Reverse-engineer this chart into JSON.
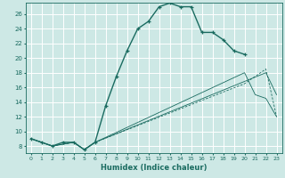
{
  "bg_color": "#cde8e5",
  "grid_color": "#ffffff",
  "line_color": "#1a6b60",
  "xlabel": "Humidex (Indice chaleur)",
  "ylabel_ticks": [
    8,
    10,
    12,
    14,
    16,
    18,
    20,
    22,
    24,
    26
  ],
  "xlim": [
    -0.5,
    23.5
  ],
  "ylim": [
    7.0,
    27.5
  ],
  "curve1_x": [
    0,
    1,
    2,
    3,
    4,
    5,
    6,
    7,
    8,
    9,
    10,
    11,
    12,
    13,
    14,
    15,
    16,
    17,
    18,
    19,
    20
  ],
  "curve1_y": [
    9.0,
    8.5,
    8.0,
    8.5,
    8.5,
    7.5,
    8.5,
    13.5,
    17.5,
    21.0,
    24.0,
    25.0,
    27.0,
    27.5,
    27.0,
    27.0,
    23.5,
    23.5,
    22.5,
    21.0,
    20.5
  ],
  "curve2_x": [
    0,
    2,
    4,
    5,
    6,
    22,
    23
  ],
  "curve2_y": [
    9.0,
    8.0,
    8.5,
    7.5,
    8.5,
    18.0,
    15.0
  ],
  "curve3_x": [
    0,
    2,
    4,
    5,
    6,
    20,
    21,
    22,
    23
  ],
  "curve3_y": [
    9.0,
    8.0,
    8.5,
    7.5,
    8.5,
    18.0,
    15.0,
    14.5,
    12.0
  ],
  "curve4_x": [
    0,
    2,
    4,
    5,
    6,
    20,
    22,
    23
  ],
  "curve4_y": [
    9.0,
    8.0,
    8.5,
    7.5,
    8.5,
    16.5,
    18.5,
    12.0
  ]
}
